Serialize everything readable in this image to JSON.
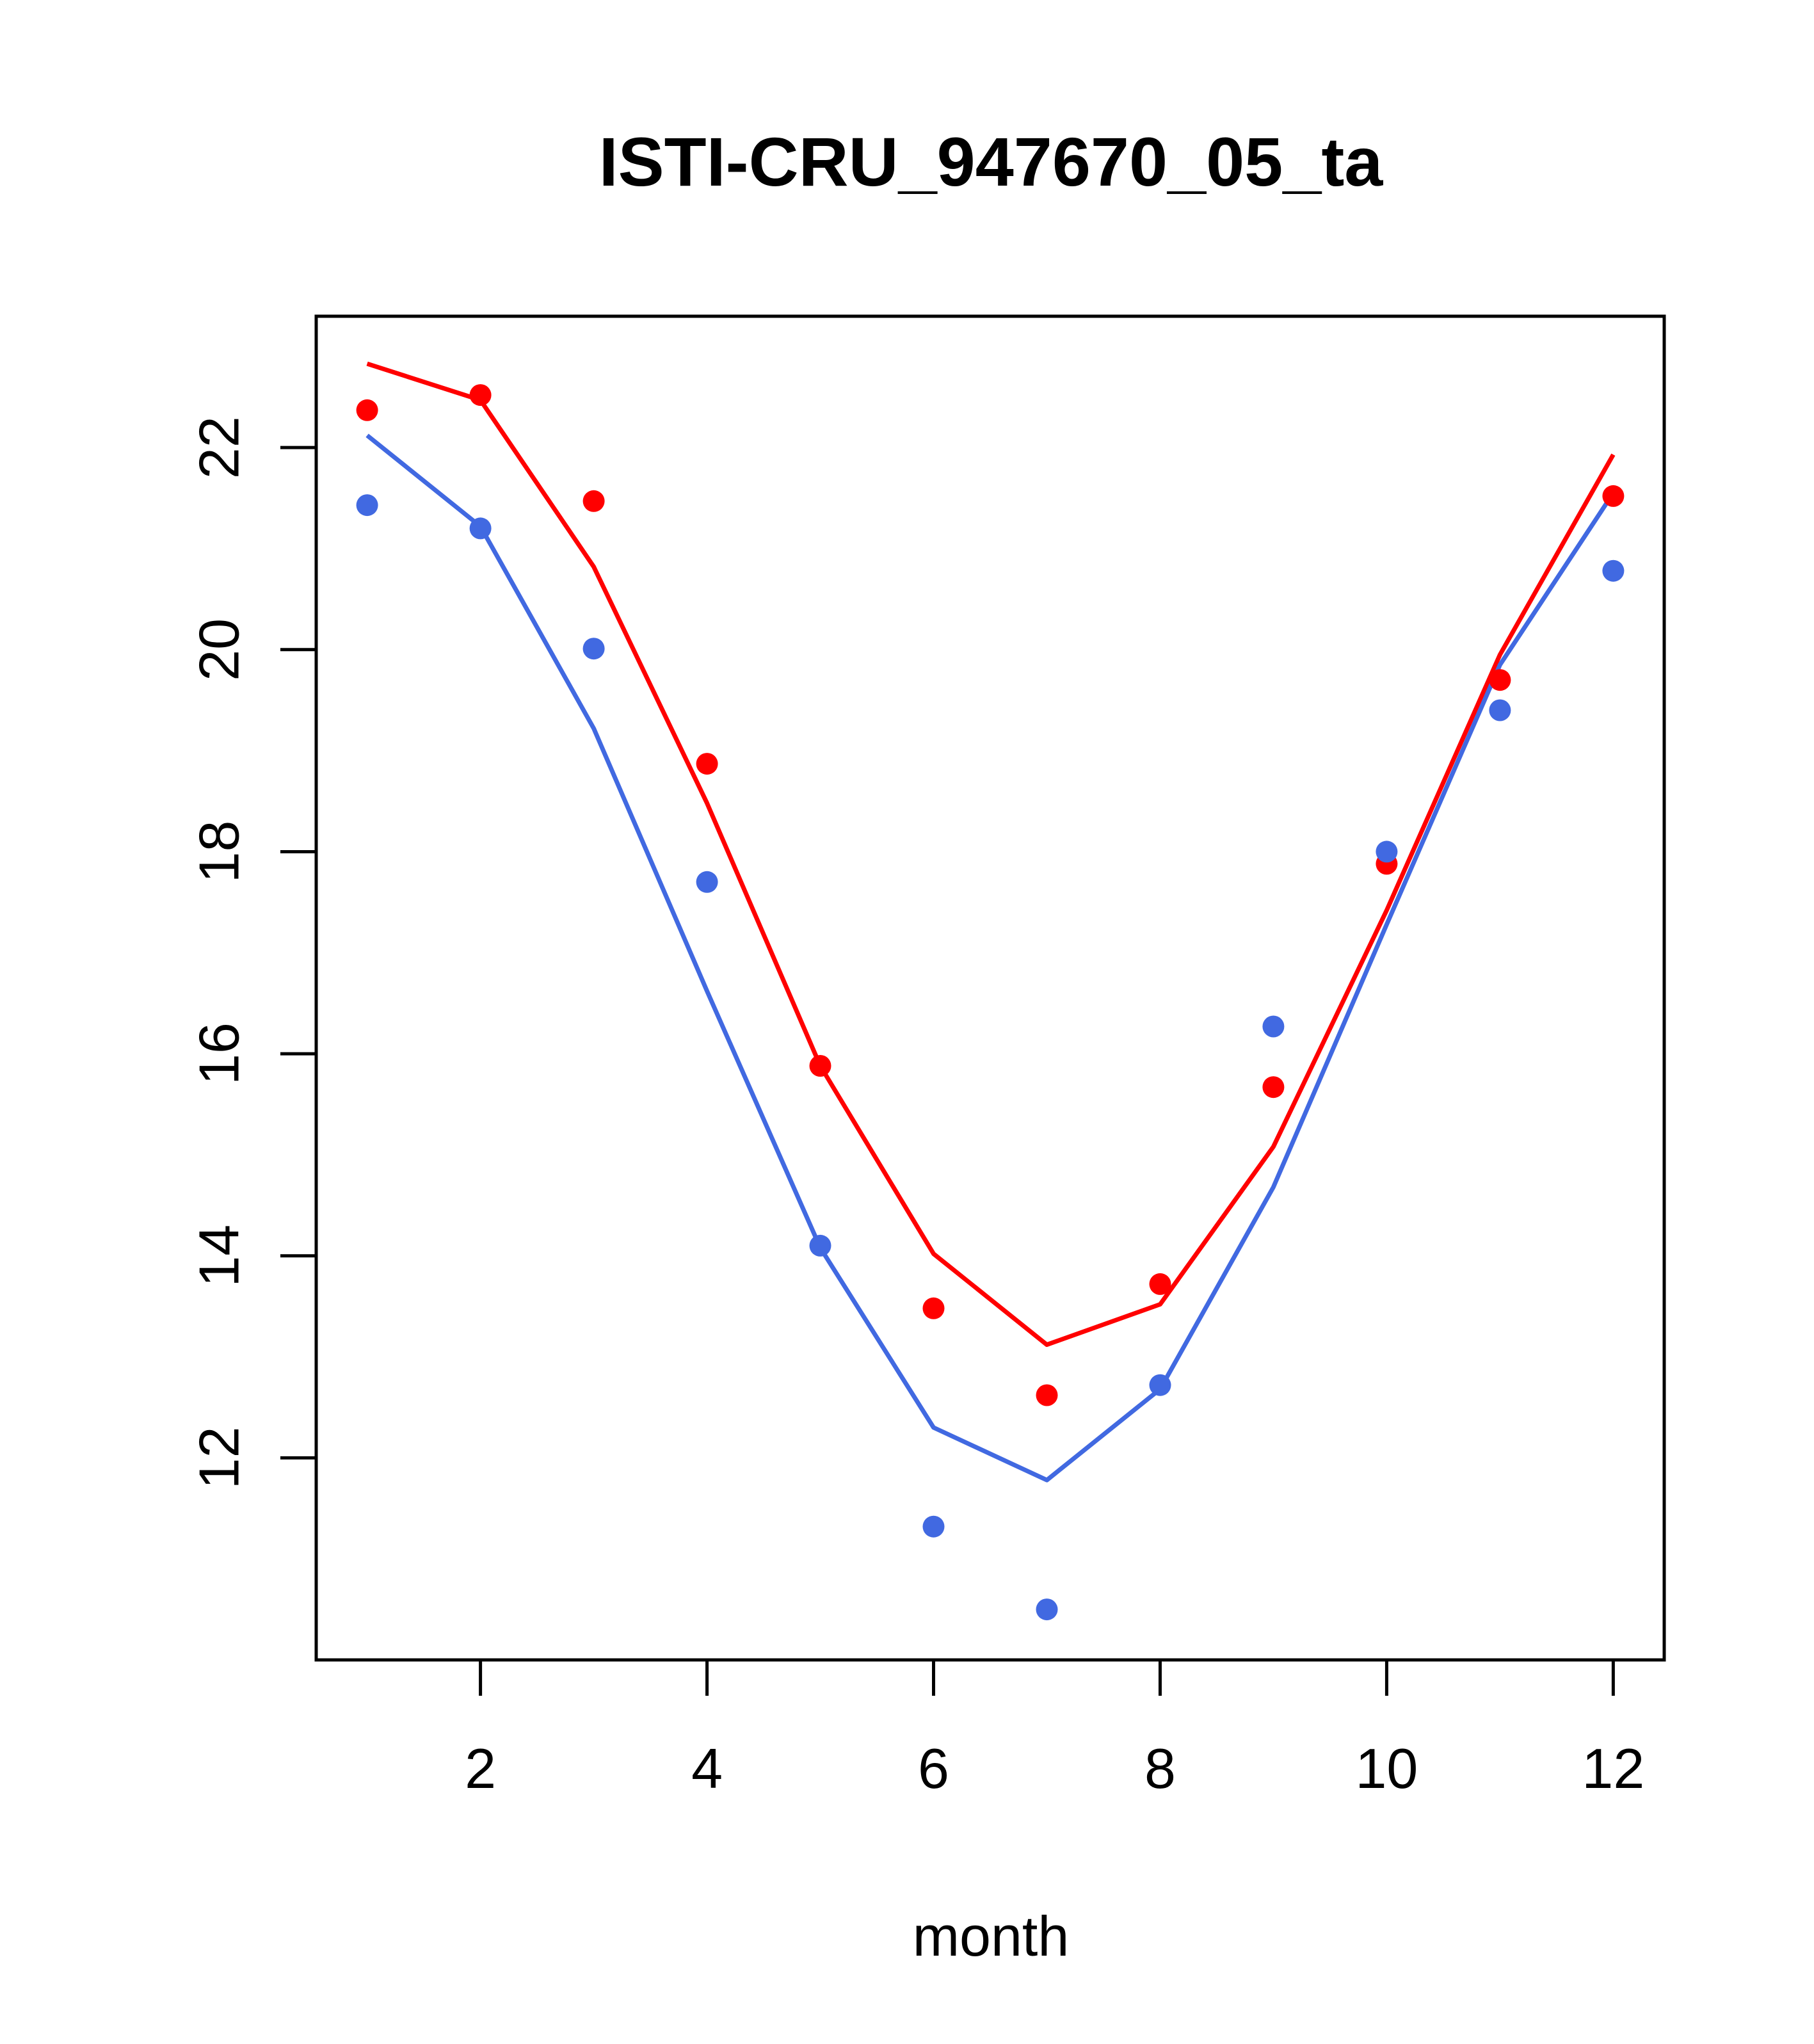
{
  "chart_data": {
    "type": "line",
    "title": "ISTI-CRU_947670_05_ta",
    "xlabel": "month",
    "ylabel": "",
    "xlim": [
      0.55,
      12.45
    ],
    "ylim": [
      10.0,
      23.3
    ],
    "x_ticks": [
      2,
      4,
      6,
      8,
      10,
      12
    ],
    "y_ticks": [
      12,
      14,
      16,
      18,
      20,
      22
    ],
    "x_tick_labels": [
      "2",
      "4",
      "6",
      "8",
      "10",
      "12"
    ],
    "y_tick_labels": [
      "12",
      "14",
      "16",
      "18",
      "20",
      "22"
    ],
    "grid": false,
    "legend": "none",
    "x": [
      1,
      2,
      3,
      4,
      5,
      6,
      7,
      8,
      9,
      10,
      11,
      12
    ],
    "series": [
      {
        "color": "#ff0000",
        "line": [
          22.83,
          22.47,
          20.82,
          18.48,
          15.88,
          14.02,
          13.12,
          13.52,
          15.08,
          17.42,
          19.95,
          21.93
        ],
        "points": [
          22.37,
          22.52,
          21.47,
          18.87,
          15.88,
          13.48,
          12.62,
          13.72,
          15.67,
          17.88,
          19.7,
          21.52
        ]
      },
      {
        "color": "#4169e1",
        "line": [
          22.12,
          21.22,
          19.22,
          16.62,
          14.08,
          12.3,
          11.78,
          12.68,
          14.68,
          17.28,
          19.85,
          21.55
        ],
        "points": [
          21.43,
          21.2,
          20.01,
          17.7,
          14.1,
          11.32,
          10.5,
          12.72,
          16.27,
          18.0,
          19.4,
          20.78
        ]
      }
    ]
  }
}
